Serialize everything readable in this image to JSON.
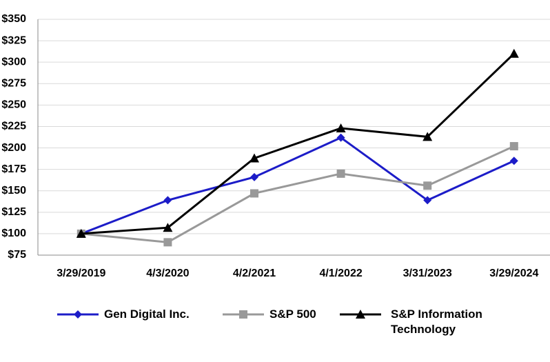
{
  "chart_data": {
    "type": "line",
    "categories": [
      "3/29/2019",
      "4/3/2020",
      "4/2/2021",
      "4/1/2022",
      "3/31/2023",
      "3/29/2024"
    ],
    "series": [
      {
        "name": "Gen Digital Inc.",
        "color": "#1c1cc8",
        "marker": "diamond",
        "values": [
          100,
          139,
          166,
          212,
          139,
          185
        ]
      },
      {
        "name": "S&P 500",
        "color": "#999999",
        "marker": "square",
        "values": [
          100,
          90,
          147,
          170,
          156,
          202
        ]
      },
      {
        "name": "S&P Information Technology",
        "color": "#000000",
        "marker": "triangle",
        "values": [
          100,
          107,
          188,
          223,
          213,
          310
        ]
      }
    ],
    "ylim": [
      75,
      350
    ],
    "yticks": [
      {
        "value": 75,
        "label": "$75"
      },
      {
        "value": 100,
        "label": "$100"
      },
      {
        "value": 125,
        "label": "$125"
      },
      {
        "value": 150,
        "label": "$150"
      },
      {
        "value": 175,
        "label": "$175"
      },
      {
        "value": 200,
        "label": "$200"
      },
      {
        "value": 225,
        "label": "$225"
      },
      {
        "value": 250,
        "label": "$250"
      },
      {
        "value": 275,
        "label": "$275"
      },
      {
        "value": 300,
        "label": "$300"
      },
      {
        "value": 325,
        "label": "$325"
      },
      {
        "value": 350,
        "label": "$350"
      }
    ],
    "grid": true
  }
}
